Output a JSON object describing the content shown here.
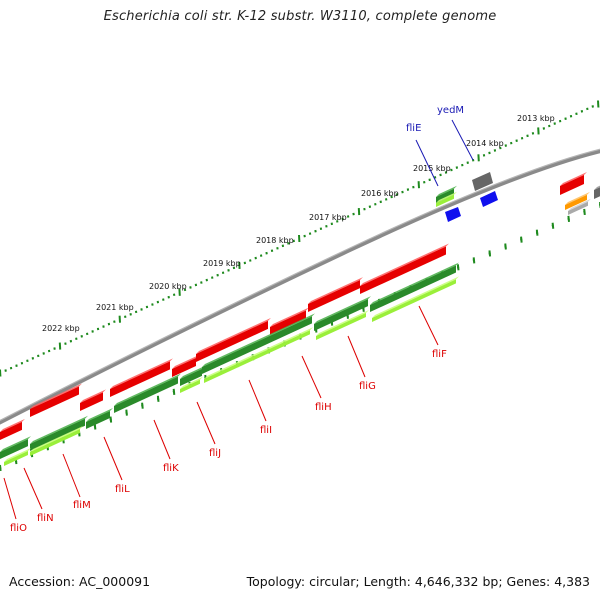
{
  "title": "Escherichia coli str. K-12 substr. W3110, complete genome",
  "footer": {
    "accession": "Accession: AC_000091",
    "summary": "Topology: circular; Length: 4,646,332 bp; Genes: 4,383"
  },
  "kbp_labels": [
    "2013 kbp",
    "2014 kbp",
    "2015 kbp",
    "2016 kbp",
    "2017 kbp",
    "2018 kbp",
    "2019 kbp",
    "2020 kbp",
    "2021 kbp",
    "2022 kbp"
  ],
  "genes_red": [
    "fliO",
    "fliN",
    "fliM",
    "fliL",
    "fliK",
    "fliJ",
    "fliI",
    "fliH",
    "fliG",
    "fliF"
  ],
  "genes_blue": [
    "fliE",
    "yedM"
  ],
  "colors": {
    "cds_red": "#e60000",
    "gene_green": "#2a8a2a",
    "gene_lightgreen": "#9aef3a",
    "backbone": "#8a8a8a",
    "tick_green": "#1e8a1e",
    "label_red": "#dd0000",
    "label_blue": "#1a1ab4",
    "blue_feature": "#1010ee",
    "gray_feature": "#666666",
    "orange_feature": "#ff9900"
  }
}
